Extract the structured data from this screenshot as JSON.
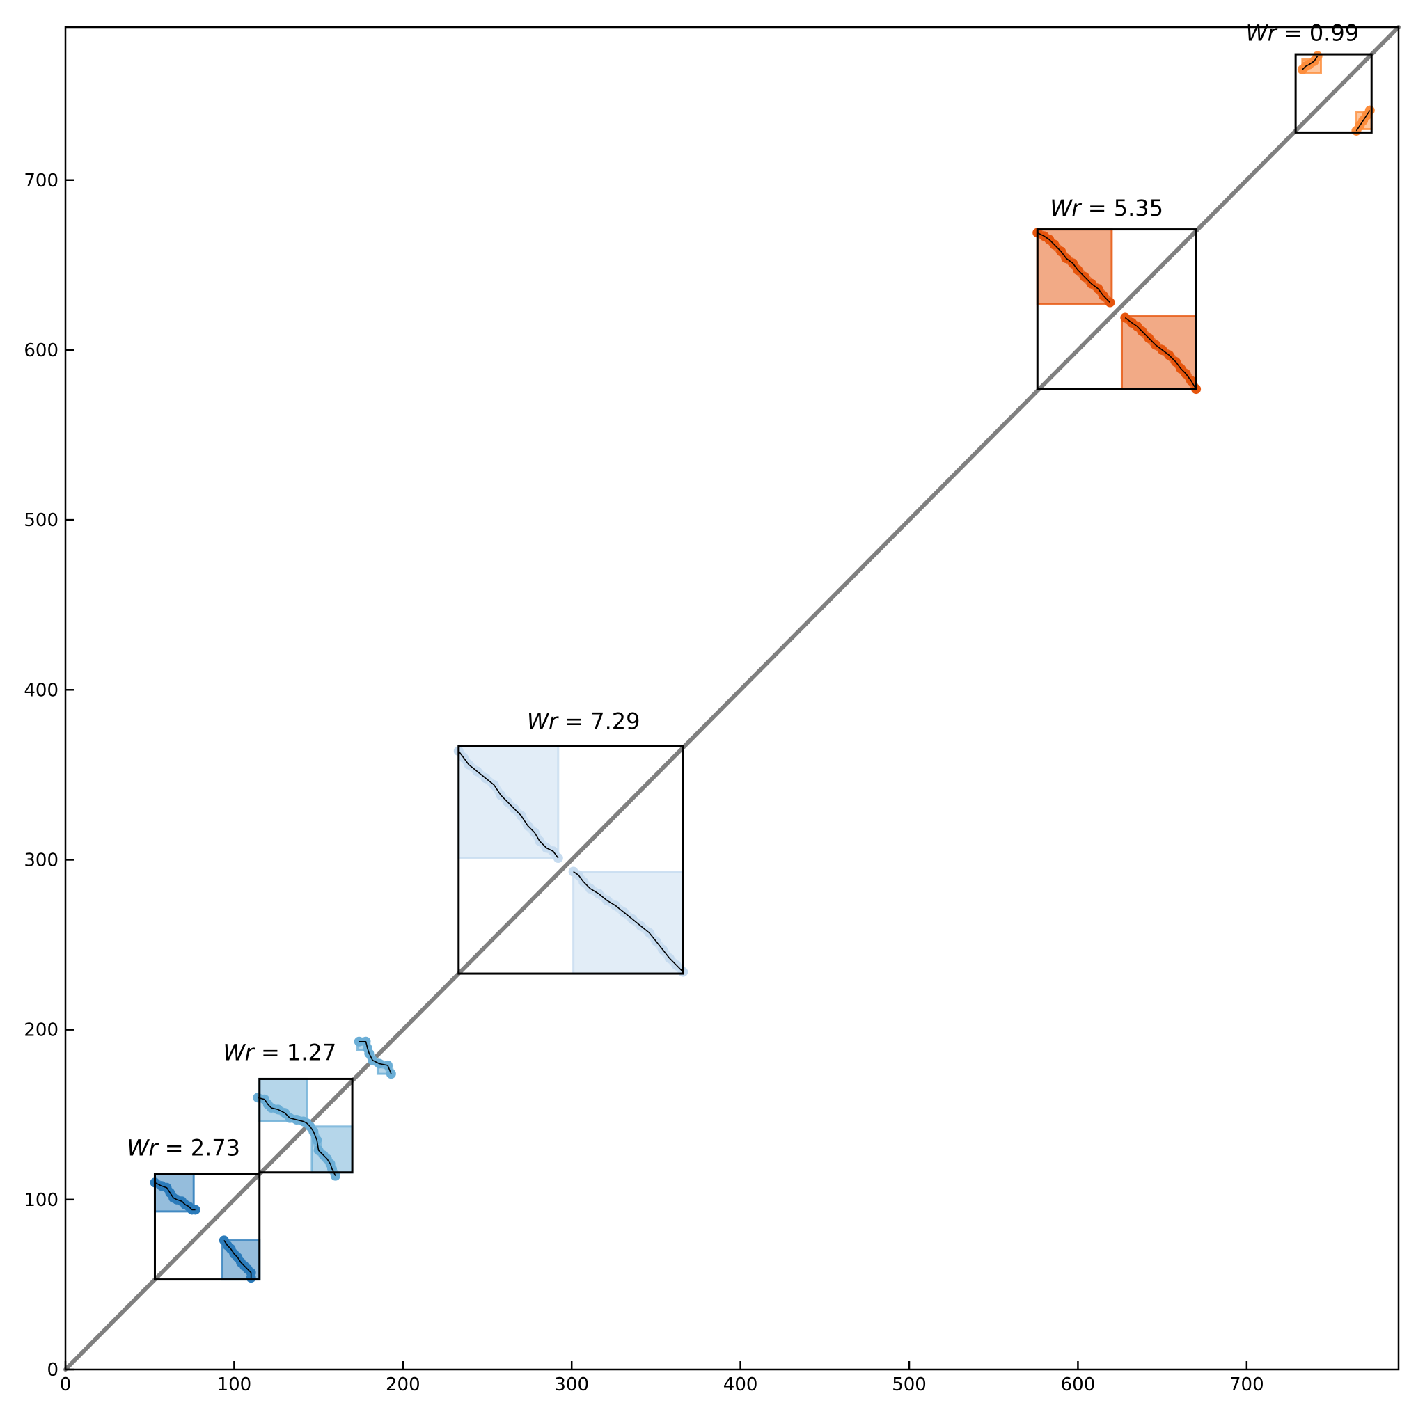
{
  "chart_data": {
    "type": "scatter",
    "title": "",
    "xlabel": "",
    "ylabel": "",
    "xlim": [
      0,
      790
    ],
    "ylim": [
      0,
      790
    ],
    "xticks": [
      0,
      100,
      200,
      300,
      400,
      500,
      600,
      700
    ],
    "yticks": [
      0,
      100,
      200,
      300,
      400,
      500,
      600,
      700
    ],
    "grid": false,
    "diagonal": {
      "from": [
        0,
        0
      ],
      "to": [
        790,
        790
      ],
      "color": "#808080"
    },
    "colors": {
      "dark_blue": "#2b7bba",
      "mid_blue": "#6baed6",
      "light_blue": "#c6dbef",
      "orange": "#fd8d3c",
      "dark_orange": "#e6550d"
    },
    "annotations": [
      {
        "symbol": "Wr",
        "text": " = 2.73",
        "x": 70,
        "y": 126
      },
      {
        "symbol": "Wr",
        "text": " = 1.27",
        "x": 127,
        "y": 182
      },
      {
        "symbol": "Wr",
        "text": " = 7.29",
        "x": 307,
        "y": 377
      },
      {
        "symbol": "Wr",
        "text": " = 5.35",
        "x": 617,
        "y": 679
      },
      {
        "symbol": "Wr",
        "text": " = 0.99",
        "x": 733,
        "y": 782
      }
    ],
    "outer_boxes": [
      {
        "x0": 53,
        "x1": 115,
        "y0": 53,
        "y1": 115
      },
      {
        "x0": 115,
        "x1": 170,
        "y0": 116,
        "y1": 171
      },
      {
        "x0": 233,
        "x1": 366,
        "y0": 233,
        "y1": 367
      },
      {
        "x0": 576,
        "x1": 670,
        "y0": 577,
        "y1": 671
      },
      {
        "x0": 729,
        "x1": 774,
        "y0": 728,
        "y1": 774
      }
    ],
    "filled_boxes": [
      {
        "x0": 53,
        "x1": 76,
        "y0": 93,
        "y1": 115,
        "fill": "#2b7bba",
        "opacity": 0.5
      },
      {
        "x0": 93,
        "x1": 115,
        "y0": 53,
        "y1": 76,
        "fill": "#2b7bba",
        "opacity": 0.5
      },
      {
        "x0": 115,
        "x1": 143,
        "y0": 146,
        "y1": 171,
        "fill": "#6baed6",
        "opacity": 0.5
      },
      {
        "x0": 146,
        "x1": 170,
        "y0": 116,
        "y1": 143,
        "fill": "#6baed6",
        "opacity": 0.5
      },
      {
        "x0": 173,
        "x1": 180,
        "y0": 188,
        "y1": 194,
        "fill": "#6baed6",
        "opacity": 0.5
      },
      {
        "x0": 185,
        "x1": 193,
        "y0": 174,
        "y1": 180,
        "fill": "#6baed6",
        "opacity": 0.5
      },
      {
        "x0": 233,
        "x1": 292,
        "y0": 301,
        "y1": 367,
        "fill": "#c6dbef",
        "opacity": 0.5
      },
      {
        "x0": 301,
        "x1": 366,
        "y0": 233,
        "y1": 293,
        "fill": "#c6dbef",
        "opacity": 0.5
      },
      {
        "x0": 576,
        "x1": 620,
        "y0": 627,
        "y1": 671,
        "fill": "#e6550d",
        "opacity": 0.5
      },
      {
        "x0": 626,
        "x1": 670,
        "y0": 577,
        "y1": 620,
        "fill": "#e6550d",
        "opacity": 0.5
      },
      {
        "x0": 733,
        "x1": 744,
        "y0": 763,
        "y1": 771,
        "fill": "#fd8d3c",
        "opacity": 0.5
      },
      {
        "x0": 765,
        "x1": 774,
        "y0": 730,
        "y1": 740,
        "fill": "#fd8d3c",
        "opacity": 0.5
      }
    ],
    "series": [
      {
        "color": "#2b7bba",
        "points": [
          [
            53,
            110
          ],
          [
            57,
            108
          ],
          [
            60,
            107
          ],
          [
            62,
            104
          ],
          [
            64,
            101
          ],
          [
            66,
            100
          ],
          [
            69,
            99
          ],
          [
            71,
            97
          ],
          [
            73,
            96
          ],
          [
            75,
            94
          ],
          [
            77,
            94
          ]
        ]
      },
      {
        "color": "#2b7bba",
        "points": [
          [
            94,
            76
          ],
          [
            96,
            73
          ],
          [
            98,
            71
          ],
          [
            100,
            68
          ],
          [
            102,
            66
          ],
          [
            104,
            63
          ],
          [
            106,
            61
          ],
          [
            108,
            59
          ],
          [
            110,
            57
          ],
          [
            110,
            54
          ]
        ]
      },
      {
        "color": "#6baed6",
        "points": [
          [
            114,
            160
          ],
          [
            118,
            159
          ],
          [
            120,
            156
          ],
          [
            122,
            154
          ],
          [
            126,
            153
          ],
          [
            130,
            151
          ],
          [
            133,
            148
          ],
          [
            137,
            147
          ],
          [
            141,
            146
          ],
          [
            143,
            145
          ],
          [
            145,
            143
          ],
          [
            147,
            140
          ],
          [
            149,
            135
          ],
          [
            150,
            129
          ],
          [
            153,
            126
          ],
          [
            155,
            124
          ],
          [
            157,
            121
          ],
          [
            158,
            118
          ],
          [
            160,
            114
          ]
        ]
      },
      {
        "color": "#6baed6",
        "points": [
          [
            174,
            193
          ],
          [
            178,
            193
          ],
          [
            179,
            189
          ],
          [
            180,
            186
          ],
          [
            182,
            182
          ],
          [
            186,
            180
          ],
          [
            191,
            179
          ],
          [
            193,
            174
          ]
        ]
      },
      {
        "color": "#c6dbef",
        "points": [
          [
            233,
            364
          ],
          [
            236,
            360
          ],
          [
            239,
            356
          ],
          [
            244,
            352
          ],
          [
            249,
            348
          ],
          [
            254,
            344
          ],
          [
            258,
            338
          ],
          [
            262,
            334
          ],
          [
            266,
            330
          ],
          [
            270,
            326
          ],
          [
            274,
            320
          ],
          [
            278,
            316
          ],
          [
            281,
            311
          ],
          [
            285,
            307
          ],
          [
            289,
            305
          ],
          [
            292,
            301
          ]
        ]
      },
      {
        "color": "#c6dbef",
        "points": [
          [
            301,
            293
          ],
          [
            304,
            291
          ],
          [
            307,
            287
          ],
          [
            311,
            283
          ],
          [
            316,
            280
          ],
          [
            321,
            276
          ],
          [
            326,
            273
          ],
          [
            331,
            269
          ],
          [
            336,
            265
          ],
          [
            341,
            261
          ],
          [
            346,
            257
          ],
          [
            350,
            252
          ],
          [
            354,
            247
          ],
          [
            358,
            242
          ],
          [
            362,
            238
          ],
          [
            366,
            234
          ]
        ]
      },
      {
        "color": "#e6550d",
        "points": [
          [
            576,
            669
          ],
          [
            580,
            667
          ],
          [
            583,
            665
          ],
          [
            586,
            662
          ],
          [
            590,
            658
          ],
          [
            593,
            654
          ],
          [
            597,
            651
          ],
          [
            600,
            647
          ],
          [
            604,
            643
          ],
          [
            608,
            639
          ],
          [
            612,
            636
          ],
          [
            615,
            632
          ],
          [
            619,
            628
          ]
        ]
      },
      {
        "color": "#e6550d",
        "points": [
          [
            628,
            619
          ],
          [
            632,
            616
          ],
          [
            635,
            614
          ],
          [
            638,
            611
          ],
          [
            642,
            607
          ],
          [
            646,
            603
          ],
          [
            650,
            600
          ],
          [
            654,
            597
          ],
          [
            658,
            593
          ],
          [
            661,
            589
          ],
          [
            664,
            586
          ],
          [
            667,
            582
          ],
          [
            670,
            577
          ]
        ]
      },
      {
        "color": "#fd8d3c",
        "points": [
          [
            733,
            765
          ],
          [
            735,
            767
          ],
          [
            737,
            768
          ],
          [
            740,
            770
          ],
          [
            742,
            773
          ]
        ]
      },
      {
        "color": "#fd8d3c",
        "points": [
          [
            765,
            729
          ],
          [
            767,
            732
          ],
          [
            769,
            735
          ],
          [
            771,
            738
          ],
          [
            773,
            741
          ]
        ]
      }
    ]
  }
}
